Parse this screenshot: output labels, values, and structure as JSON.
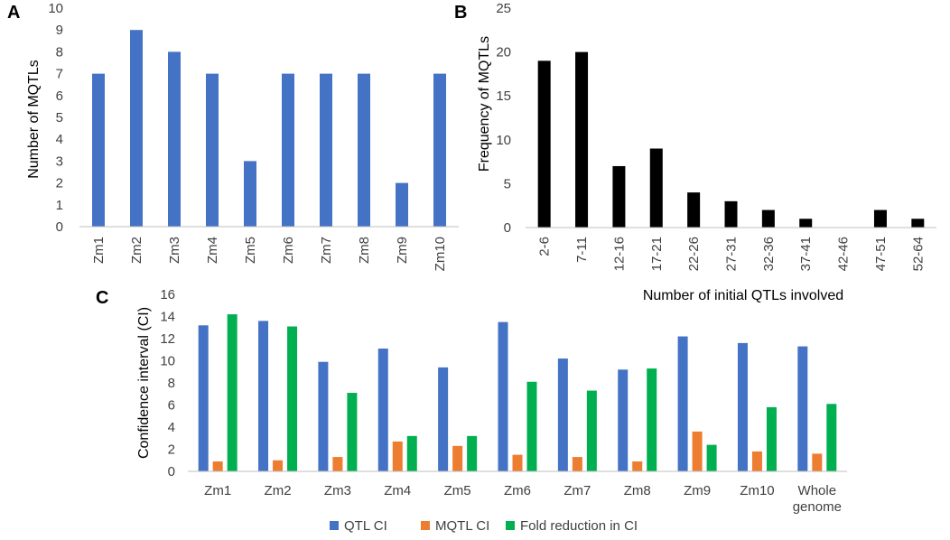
{
  "chart_data": [
    {
      "panel": "A",
      "type": "bar",
      "title": "",
      "xlabel": "",
      "ylabel": "Number of MQTLs",
      "ylim": [
        0,
        10
      ],
      "yticks": [
        0,
        1,
        2,
        3,
        4,
        5,
        6,
        7,
        8,
        9,
        10
      ],
      "categories": [
        "Zm1",
        "Zm2",
        "Zm3",
        "Zm4",
        "Zm5",
        "Zm6",
        "Zm7",
        "Zm8",
        "Zm9",
        "Zm10"
      ],
      "values": [
        7,
        9,
        8,
        7,
        3,
        7,
        7,
        7,
        2,
        7
      ],
      "color": "#4472C4"
    },
    {
      "panel": "B",
      "type": "bar",
      "title": "",
      "xlabel": "Number of initial QTLs involved",
      "ylabel": "Frequency of MQTLs",
      "ylim": [
        0,
        25
      ],
      "yticks": [
        0,
        5,
        10,
        15,
        20,
        25
      ],
      "categories": [
        "2-6",
        "7-11",
        "12-16",
        "17-21",
        "22-26",
        "27-31",
        "32-36",
        "37-41",
        "42-46",
        "47-51",
        "52-64"
      ],
      "values": [
        19,
        20,
        7,
        9,
        4,
        3,
        2,
        1,
        0,
        2,
        1
      ],
      "color": "#000000"
    },
    {
      "panel": "C",
      "type": "bar",
      "title": "",
      "xlabel": "",
      "ylabel": "Confidence interval (CI)",
      "ylim": [
        0,
        16
      ],
      "yticks": [
        0,
        2,
        4,
        6,
        8,
        10,
        12,
        14,
        16
      ],
      "categories": [
        "Zm1",
        "Zm2",
        "Zm3",
        "Zm4",
        "Zm5",
        "Zm6",
        "Zm7",
        "Zm8",
        "Zm9",
        "Zm10",
        "Whole genome"
      ],
      "series": [
        {
          "name": "QTL CI",
          "color": "#4472C4",
          "values": [
            13.2,
            13.6,
            9.9,
            11.1,
            9.4,
            13.5,
            10.2,
            9.2,
            12.2,
            11.6,
            11.3
          ]
        },
        {
          "name": "MQTL CI",
          "color": "#ED7D31",
          "values": [
            0.9,
            1.0,
            1.3,
            2.7,
            2.3,
            1.5,
            1.3,
            0.9,
            3.6,
            1.8,
            1.6
          ]
        },
        {
          "name": "Fold reduction in CI",
          "color": "#00B050",
          "values": [
            14.2,
            13.1,
            7.1,
            3.2,
            3.2,
            8.1,
            7.3,
            9.3,
            2.4,
            5.8,
            6.1
          ]
        }
      ],
      "legend_position": "bottom"
    }
  ]
}
